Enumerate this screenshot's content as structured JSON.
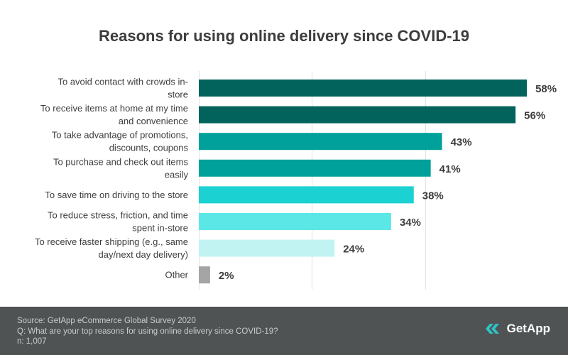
{
  "chart_data": {
    "type": "bar",
    "orientation": "horizontal",
    "title": "Reasons for using online delivery since COVID-19",
    "categories": [
      [
        "To avoid contact with crowds in-",
        "store"
      ],
      [
        "To receive items at home at my time",
        "and convenience"
      ],
      [
        "To take advantage of promotions,",
        "discounts, coupons"
      ],
      [
        "To purchase and check out items",
        "easily"
      ],
      [
        "To save time on driving to the store"
      ],
      [
        "To reduce stress, friction, and time",
        "spent in-store"
      ],
      [
        "To receive faster shipping (e.g., same",
        "day/next day delivery)"
      ],
      [
        "Other"
      ]
    ],
    "values": [
      58,
      56,
      43,
      41,
      38,
      34,
      24,
      2
    ],
    "value_labels": [
      "58%",
      "56%",
      "43%",
      "41%",
      "38%",
      "34%",
      "24%",
      "2%"
    ],
    "colors": [
      "#02635d",
      "#02635d",
      "#00a19a",
      "#00a19a",
      "#1cd1d1",
      "#5ce7e7",
      "#c2f3f3",
      "#a5a5a5"
    ],
    "xlim": [
      0,
      60
    ],
    "unit": "%",
    "grid": true
  },
  "footer": {
    "source": "Source: GetApp eCommerce Global Survey 2020",
    "question": "Q: What are your top reasons for using online delivery since COVID-19?",
    "sample": "n: 1,007"
  },
  "brand": {
    "name": "GetApp",
    "icon": "getapp-chevron-icon"
  }
}
